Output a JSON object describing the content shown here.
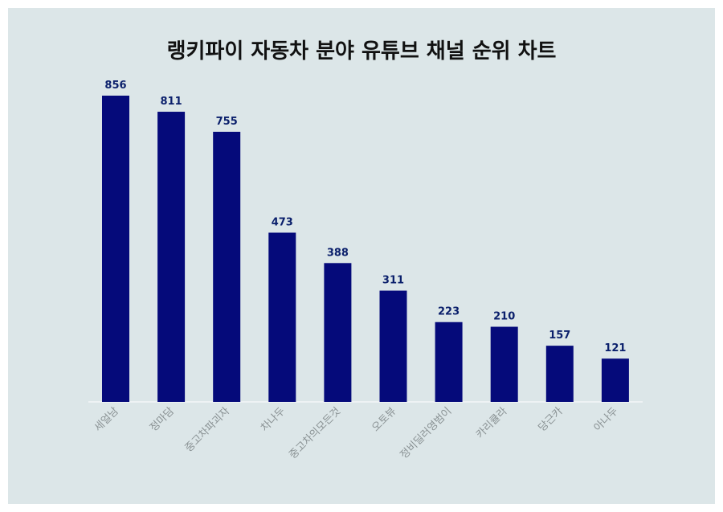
{
  "chart_data": {
    "type": "bar",
    "title": "랭키파이 자동차 분야 유튜브 채널 순위 차트",
    "categories": [
      "세얼남",
      "정마담",
      "중고차파괴자",
      "차나두",
      "중고차의모든것",
      "오토뷰",
      "정비딜러영범이",
      "카리큘라",
      "당근카",
      "아나두"
    ],
    "values": [
      856,
      811,
      755,
      473,
      388,
      311,
      223,
      210,
      157,
      121
    ],
    "xlabel": "",
    "ylabel": "",
    "ylim": [
      0,
      856
    ],
    "grid": false,
    "bar_color": "#050a7a",
    "background_color": "#dce6e8"
  }
}
